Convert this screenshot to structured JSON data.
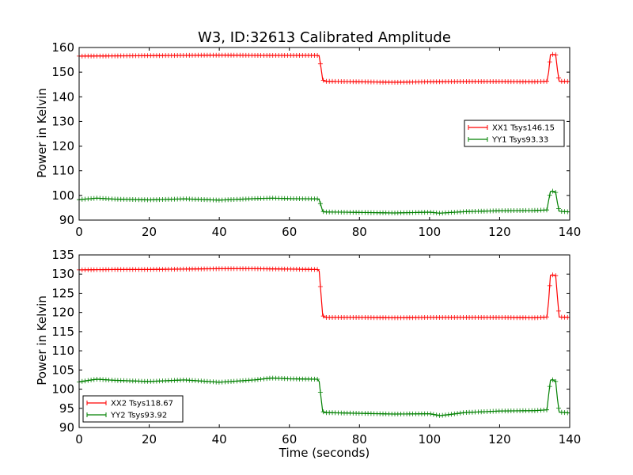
{
  "chart_data": [
    {
      "type": "line",
      "title": "W3, ID:32613 Calibrated Amplitude",
      "xlabel": "",
      "ylabel": "Power in Kelvin",
      "xlim": [
        0,
        140
      ],
      "ylim": [
        90,
        160
      ],
      "xticks": [
        0,
        20,
        40,
        60,
        80,
        100,
        120,
        140
      ],
      "yticks": [
        90,
        100,
        110,
        120,
        130,
        140,
        150,
        160
      ],
      "legend_position": "center-right",
      "series": [
        {
          "name": "XX1 Tsys146.15",
          "color": "#ff0000",
          "x": [
            0,
            10,
            20,
            30,
            40,
            50,
            60,
            68,
            68.5,
            69,
            69.5,
            70,
            80,
            90,
            100,
            110,
            120,
            130,
            133.5,
            134,
            134.5,
            135,
            136,
            136.5,
            137,
            140
          ],
          "y": [
            156.5,
            156.6,
            156.7,
            156.8,
            156.9,
            156.8,
            156.8,
            156.8,
            156.5,
            152,
            147,
            146.3,
            146.1,
            145.9,
            146.1,
            146.2,
            146.2,
            146.1,
            146.3,
            150,
            157,
            157.2,
            157,
            151,
            146.3,
            146.2
          ]
        },
        {
          "name": "YY1 Tsys93.33",
          "color": "#008000",
          "x": [
            0,
            5,
            10,
            20,
            30,
            40,
            50,
            55,
            60,
            68,
            68.5,
            69,
            69.5,
            70,
            80,
            90,
            100,
            103,
            105,
            110,
            120,
            130,
            133.5,
            134,
            134.5,
            135,
            136,
            136.5,
            137,
            140
          ],
          "y": [
            98.3,
            98.9,
            98.5,
            98.2,
            98.6,
            98.1,
            98.7,
            98.9,
            98.7,
            98.6,
            98.3,
            96,
            93.6,
            93.3,
            93.1,
            92.9,
            93.2,
            92.8,
            93.0,
            93.4,
            93.8,
            93.9,
            94.1,
            98,
            101.5,
            101.8,
            101.2,
            97,
            93.6,
            93.3
          ]
        }
      ]
    },
    {
      "type": "line",
      "title": "",
      "xlabel": "Time (seconds)",
      "ylabel": "Power in Kelvin",
      "xlim": [
        0,
        140
      ],
      "ylim": [
        90,
        135
      ],
      "xticks": [
        0,
        20,
        40,
        60,
        80,
        100,
        120,
        140
      ],
      "yticks": [
        90,
        95,
        100,
        105,
        110,
        115,
        120,
        125,
        130,
        135
      ],
      "legend_position": "lower-left",
      "series": [
        {
          "name": "XX2 Tsys118.67",
          "color": "#ff0000",
          "x": [
            0,
            10,
            20,
            30,
            40,
            50,
            60,
            68,
            68.5,
            69,
            69.5,
            70,
            80,
            90,
            100,
            110,
            120,
            130,
            133.5,
            134,
            134.5,
            135,
            136,
            136.5,
            137,
            140
          ],
          "y": [
            131.1,
            131.2,
            131.2,
            131.3,
            131.4,
            131.4,
            131.3,
            131.2,
            130.8,
            125,
            119.3,
            118.7,
            118.7,
            118.6,
            118.7,
            118.7,
            118.7,
            118.6,
            118.8,
            123,
            129.6,
            129.8,
            129.6,
            124,
            118.8,
            118.7
          ]
        },
        {
          "name": "YY2 Tsys93.92",
          "color": "#008000",
          "x": [
            0,
            5,
            10,
            20,
            30,
            40,
            45,
            50,
            55,
            60,
            68,
            68.5,
            69,
            69.5,
            70,
            80,
            90,
            100,
            103,
            105,
            110,
            120,
            130,
            133.5,
            134,
            134.5,
            135,
            136,
            136.5,
            137,
            140
          ],
          "y": [
            101.9,
            102.6,
            102.3,
            102.0,
            102.4,
            101.8,
            102.1,
            102.4,
            102.9,
            102.7,
            102.6,
            102.0,
            98,
            94.2,
            93.9,
            93.7,
            93.5,
            93.6,
            93.1,
            93.3,
            93.9,
            94.3,
            94.4,
            94.6,
            98.5,
            102.2,
            102.5,
            102.0,
            97.5,
            94.0,
            93.8
          ]
        }
      ]
    }
  ]
}
